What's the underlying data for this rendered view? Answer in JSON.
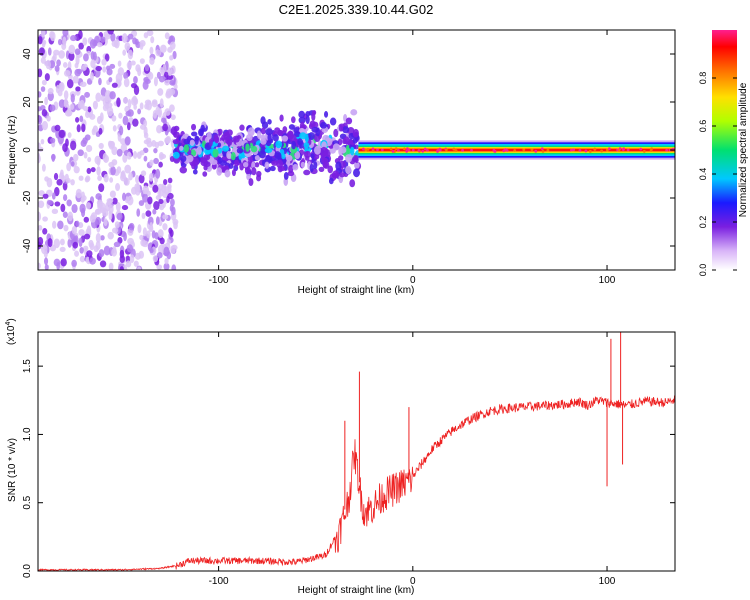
{
  "title": "C2E1.2025.339.10.44.G02",
  "colorbar": {
    "label": "Normalized spectral amplitude",
    "ticks": [
      "0.0",
      "0.2",
      "0.4",
      "0.6",
      "0.8"
    ],
    "tick_values": [
      0.0,
      0.2,
      0.4,
      0.6,
      0.8
    ],
    "range": [
      0,
      1
    ],
    "colors": [
      "#ffffff",
      "#d8b4f8",
      "#7a1fe0",
      "#1a1aff",
      "#00c8ff",
      "#00e070",
      "#b0ff00",
      "#ffe000",
      "#ff7000",
      "#ff0000",
      "#ff1f8f"
    ]
  },
  "chart_data": [
    {
      "type": "heatmap",
      "title": "C2E1.2025.339.10.44.G02",
      "xlabel": "Height of straight line (km)",
      "ylabel": "Frequency (Hz)",
      "xlim": [
        -193,
        135
      ],
      "ylim": [
        -50,
        50
      ],
      "xticks": [
        -100,
        0,
        100
      ],
      "xtick_labels": [
        "-100",
        "0",
        "100"
      ],
      "yticks": [
        -40,
        -20,
        0,
        20,
        40
      ],
      "ytick_labels": [
        "-40",
        "-20",
        "0",
        "20",
        "40"
      ],
      "description_regions": [
        {
          "x_range": [
            -193,
            -122
          ],
          "freq_range": [
            -50,
            50
          ],
          "amplitude": "low, scattered noise"
        },
        {
          "x_range": [
            -122,
            -28
          ],
          "freq_range": [
            -12,
            15
          ],
          "amplitude": "low to medium, broad band around 0 Hz"
        },
        {
          "x_range": [
            -28,
            135
          ],
          "freq_range": [
            -3,
            3
          ],
          "amplitude": "high, narrow line near 0 Hz"
        }
      ]
    },
    {
      "type": "line",
      "xlabel": "Height of straight line (km)",
      "ylabel": "SNR (10 * v/v)",
      "exponent_label": "(x10",
      "exponent_power": "4",
      "exponent_close": ")",
      "xlim": [
        -193,
        135
      ],
      "ylim": [
        0,
        1.75
      ],
      "xticks": [
        -100,
        0,
        100
      ],
      "xtick_labels": [
        "-100",
        "0",
        "100"
      ],
      "yticks": [
        0.0,
        0.5,
        1.0,
        1.5
      ],
      "ytick_labels": [
        "0.0",
        "0.5",
        "1.0",
        "1.5"
      ],
      "series": [
        {
          "name": "SNR",
          "color": "#ee2222",
          "x": [
            -193,
            -170,
            -150,
            -130,
            -122,
            -115,
            -100,
            -80,
            -60,
            -45,
            -38,
            -33,
            -30,
            -27,
            -25,
            -20,
            -15,
            -10,
            -5,
            0,
            5,
            10,
            15,
            20,
            25,
            30,
            35,
            40,
            50,
            60,
            70,
            80,
            85,
            90,
            95,
            100,
            105,
            110,
            120,
            130,
            135
          ],
          "values": [
            0.01,
            0.01,
            0.01,
            0.02,
            0.04,
            0.08,
            0.08,
            0.08,
            0.07,
            0.12,
            0.3,
            0.55,
            0.9,
            0.6,
            0.45,
            0.5,
            0.58,
            0.62,
            0.66,
            0.7,
            0.8,
            0.9,
            0.97,
            1.03,
            1.08,
            1.12,
            1.15,
            1.18,
            1.2,
            1.21,
            1.22,
            1.23,
            1.25,
            1.22,
            1.26,
            1.24,
            1.23,
            1.22,
            1.25,
            1.24,
            1.26
          ]
        }
      ],
      "peaks": [
        {
          "x": -27.5,
          "value": 1.46
        },
        {
          "x": -35,
          "value": 1.1
        },
        {
          "x": 102,
          "value": 1.7
        },
        {
          "x": 107,
          "value": 1.75
        },
        {
          "x": 100,
          "value": 0.62
        },
        {
          "x": 108,
          "value": 0.78
        },
        {
          "x": -2,
          "value": 1.2
        }
      ]
    }
  ]
}
